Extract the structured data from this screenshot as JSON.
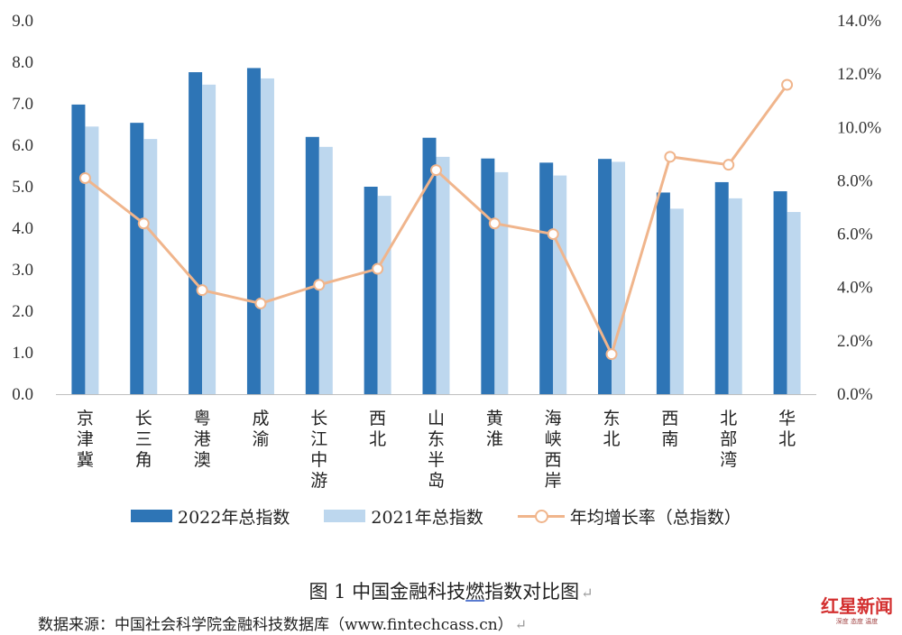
{
  "chart_data": {
    "type": "bar",
    "categories": [
      "京津冀",
      "长三角",
      "粤港澳",
      "成渝",
      "长江中游",
      "西北",
      "山东半岛",
      "黄淮",
      "海峡西岸",
      "东北",
      "西南",
      "北部湾",
      "华北"
    ],
    "series": [
      {
        "name": "2022年总指数",
        "type": "bar",
        "axis": "left",
        "color": "#2e75b6",
        "values": [
          6.98,
          6.54,
          7.76,
          7.86,
          6.2,
          5.0,
          6.18,
          5.68,
          5.58,
          5.67,
          4.86,
          5.11,
          4.89
        ]
      },
      {
        "name": "2021年总指数",
        "type": "bar",
        "axis": "left",
        "color": "#bdd7ee",
        "values": [
          6.45,
          6.15,
          7.46,
          7.61,
          5.96,
          4.78,
          5.72,
          5.35,
          5.27,
          5.6,
          4.47,
          4.72,
          4.39
        ]
      },
      {
        "name": "年均增长率（总指数）",
        "type": "line",
        "axis": "right",
        "color": "#f0b58c",
        "values": [
          8.1,
          6.4,
          3.9,
          3.4,
          4.1,
          4.7,
          8.4,
          6.4,
          6.0,
          1.5,
          8.9,
          8.6,
          11.6
        ]
      }
    ],
    "y_left": {
      "min": 0,
      "max": 9,
      "ticks": [
        "0.0",
        "1.0",
        "2.0",
        "3.0",
        "4.0",
        "5.0",
        "6.0",
        "7.0",
        "8.0",
        "9.0"
      ]
    },
    "y_right": {
      "min": 0,
      "max": 14,
      "ticks": [
        "0.0%",
        "2.0%",
        "4.0%",
        "6.0%",
        "8.0%",
        "10.0%",
        "12.0%",
        "14.0%"
      ]
    },
    "grid": false,
    "legend": "bottom"
  },
  "caption": {
    "prefix": "图 1 中国金融科技",
    "underlined": "燃",
    "suffix": "指数对比图",
    "return_mark": "↵"
  },
  "source": {
    "text": "数据来源：中国社会科学院金融科技数据库（www.fintechcass.cn）",
    "return_mark": "↵"
  },
  "logo": {
    "title": "红星新闻",
    "subtitle": "深度 态度 温度"
  }
}
